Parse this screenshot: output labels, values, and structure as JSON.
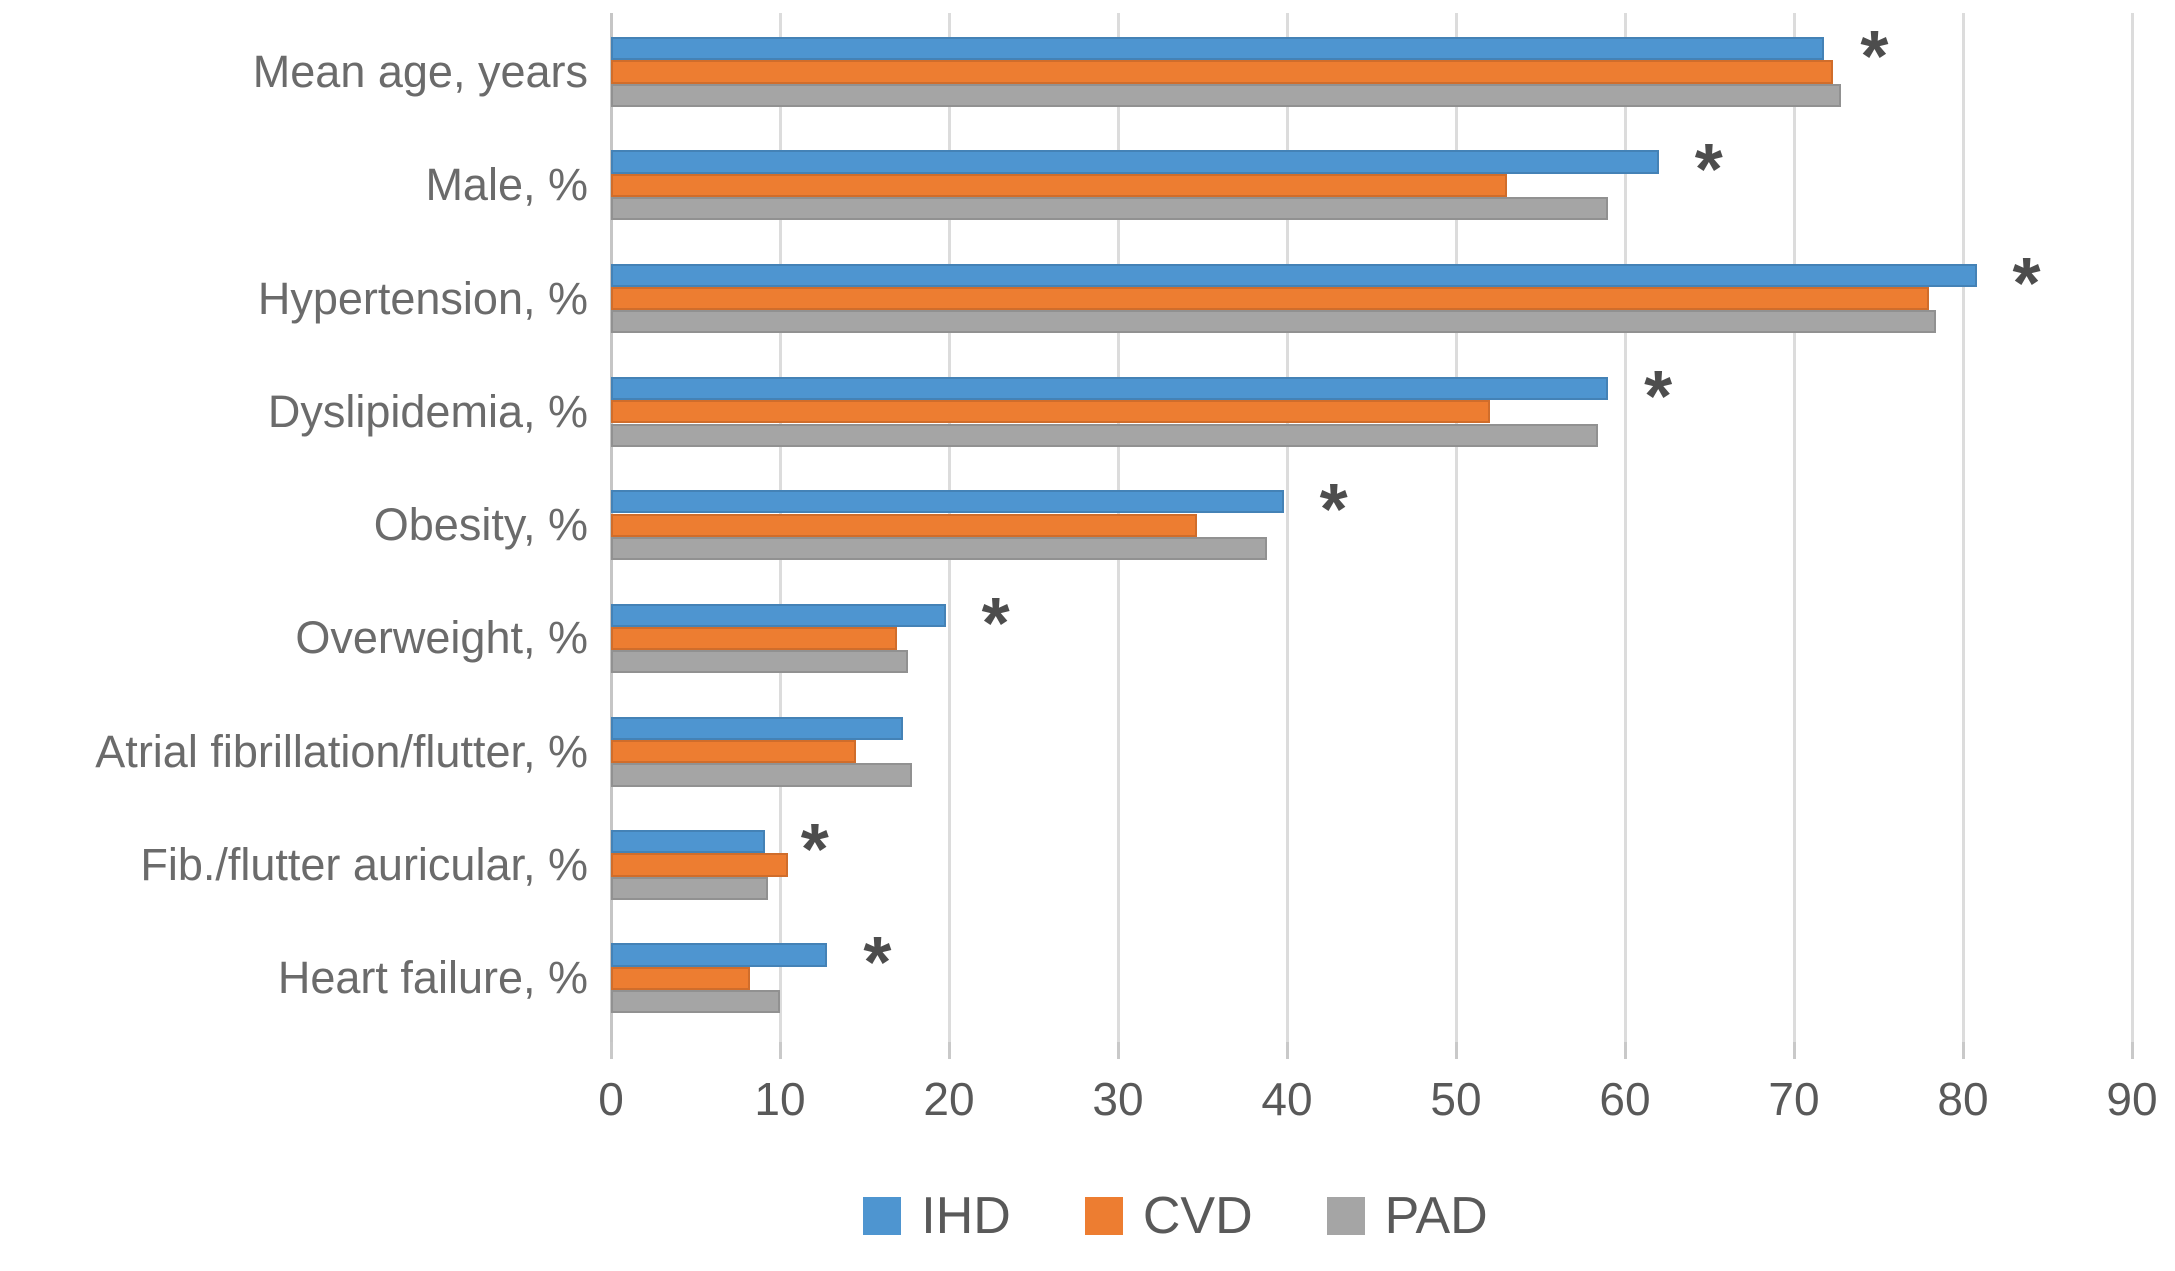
{
  "chart_data": {
    "type": "bar",
    "orientation": "horizontal",
    "title": "",
    "xlabel": "",
    "ylabel": "",
    "xlim": [
      0,
      90
    ],
    "x_ticks": [
      "0",
      "10",
      "20",
      "30",
      "40",
      "50",
      "60",
      "70",
      "80",
      "90"
    ],
    "grid": true,
    "legend_position": "bottom",
    "categories": [
      "Mean age, years",
      "Male, %",
      "Hypertension, %",
      "Dyslipidemia, %",
      "Obesity, %",
      "Overweight, %",
      "Atrial fibrillation/flutter, %",
      "Fib./flutter auricular, %",
      "Heart failure, %"
    ],
    "series": [
      {
        "name": "IHD",
        "color": "#4E95D0",
        "values": [
          71.8,
          62.0,
          80.8,
          59.0,
          39.8,
          19.8,
          17.3,
          9.1,
          12.8
        ]
      },
      {
        "name": "CVD",
        "color": "#ED7D31",
        "values": [
          72.3,
          53.0,
          78.0,
          52.0,
          34.7,
          16.9,
          14.5,
          10.5,
          8.2
        ]
      },
      {
        "name": "PAD",
        "color": "#A5A5A5",
        "values": [
          72.8,
          59.0,
          78.4,
          58.4,
          38.8,
          17.6,
          17.8,
          9.3,
          10.0
        ]
      }
    ],
    "significance_marker": "*",
    "significant_categories": [
      true,
      true,
      true,
      true,
      true,
      true,
      false,
      true,
      true
    ],
    "colors": {
      "grid": "#dcdcdc",
      "axis": "#c6c6c6",
      "text": "#595959",
      "category_text": "#6b6b6b"
    }
  }
}
